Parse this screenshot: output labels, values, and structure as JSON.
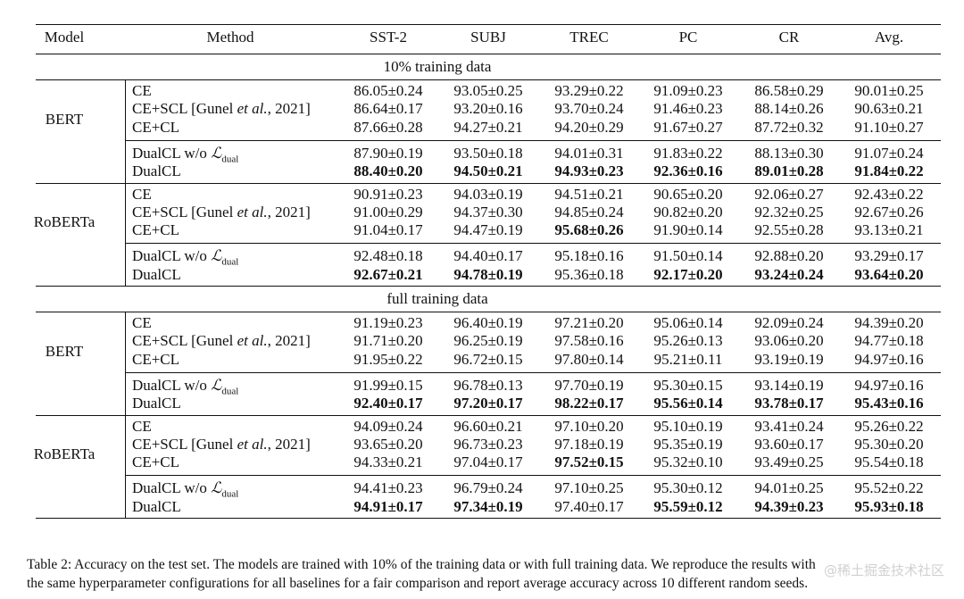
{
  "table": {
    "headers": [
      "Model",
      "Method",
      "SST-2",
      "SUBJ",
      "TREC",
      "PC",
      "CR",
      "Avg."
    ],
    "sections": [
      {
        "title": "10% training data",
        "groups": [
          {
            "model": "BERT",
            "rows": [
              {
                "method": "CE",
                "cells": [
                  [
                    "86.05±0.24",
                    false
                  ],
                  [
                    "93.05±0.25",
                    false
                  ],
                  [
                    "93.29±0.22",
                    false
                  ],
                  [
                    "91.09±0.23",
                    false
                  ],
                  [
                    "86.58±0.29",
                    false
                  ],
                  [
                    "90.01±0.25",
                    false
                  ]
                ]
              },
              {
                "method": "CE+SCL [Gunel et al., 2021]",
                "cells": [
                  [
                    "86.64±0.17",
                    false
                  ],
                  [
                    "93.20±0.16",
                    false
                  ],
                  [
                    "93.70±0.24",
                    false
                  ],
                  [
                    "91.46±0.23",
                    false
                  ],
                  [
                    "88.14±0.26",
                    false
                  ],
                  [
                    "90.63±0.21",
                    false
                  ]
                ]
              },
              {
                "method": "CE+CL",
                "cells": [
                  [
                    "87.66±0.28",
                    false
                  ],
                  [
                    "94.27±0.21",
                    false
                  ],
                  [
                    "94.20±0.29",
                    false
                  ],
                  [
                    "91.67±0.27",
                    false
                  ],
                  [
                    "87.72±0.32",
                    false
                  ],
                  [
                    "91.10±0.27",
                    false
                  ]
                ]
              },
              {
                "method": "DualCL w/o L_dual",
                "cells": [
                  [
                    "87.90±0.19",
                    false
                  ],
                  [
                    "93.50±0.18",
                    false
                  ],
                  [
                    "94.01±0.31",
                    false
                  ],
                  [
                    "91.83±0.22",
                    false
                  ],
                  [
                    "88.13±0.30",
                    false
                  ],
                  [
                    "91.07±0.24",
                    false
                  ]
                ]
              },
              {
                "method": "DualCL",
                "cells": [
                  [
                    "88.40±0.20",
                    true
                  ],
                  [
                    "94.50±0.21",
                    true
                  ],
                  [
                    "94.93±0.23",
                    true
                  ],
                  [
                    "92.36±0.16",
                    true
                  ],
                  [
                    "89.01±0.28",
                    true
                  ],
                  [
                    "91.84±0.22",
                    true
                  ]
                ]
              }
            ]
          },
          {
            "model": "RoBERTa",
            "rows": [
              {
                "method": "CE",
                "cells": [
                  [
                    "90.91±0.23",
                    false
                  ],
                  [
                    "94.03±0.19",
                    false
                  ],
                  [
                    "94.51±0.21",
                    false
                  ],
                  [
                    "90.65±0.20",
                    false
                  ],
                  [
                    "92.06±0.27",
                    false
                  ],
                  [
                    "92.43±0.22",
                    false
                  ]
                ]
              },
              {
                "method": "CE+SCL [Gunel et al., 2021]",
                "cells": [
                  [
                    "91.00±0.29",
                    false
                  ],
                  [
                    "94.37±0.30",
                    false
                  ],
                  [
                    "94.85±0.24",
                    false
                  ],
                  [
                    "90.82±0.20",
                    false
                  ],
                  [
                    "92.32±0.25",
                    false
                  ],
                  [
                    "92.67±0.26",
                    false
                  ]
                ]
              },
              {
                "method": "CE+CL",
                "cells": [
                  [
                    "91.04±0.17",
                    false
                  ],
                  [
                    "94.47±0.19",
                    false
                  ],
                  [
                    "95.68±0.26",
                    true
                  ],
                  [
                    "91.90±0.14",
                    false
                  ],
                  [
                    "92.55±0.28",
                    false
                  ],
                  [
                    "93.13±0.21",
                    false
                  ]
                ]
              },
              {
                "method": "DualCL w/o L_dual",
                "cells": [
                  [
                    "92.48±0.18",
                    false
                  ],
                  [
                    "94.40±0.17",
                    false
                  ],
                  [
                    "95.18±0.16",
                    false
                  ],
                  [
                    "91.50±0.14",
                    false
                  ],
                  [
                    "92.88±0.20",
                    false
                  ],
                  [
                    "93.29±0.17",
                    false
                  ]
                ]
              },
              {
                "method": "DualCL",
                "cells": [
                  [
                    "92.67±0.21",
                    true
                  ],
                  [
                    "94.78±0.19",
                    true
                  ],
                  [
                    "95.36±0.18",
                    false
                  ],
                  [
                    "92.17±0.20",
                    true
                  ],
                  [
                    "93.24±0.24",
                    true
                  ],
                  [
                    "93.64±0.20",
                    true
                  ]
                ]
              }
            ]
          }
        ]
      },
      {
        "title": "full training data",
        "groups": [
          {
            "model": "BERT",
            "rows": [
              {
                "method": "CE",
                "cells": [
                  [
                    "91.19±0.23",
                    false
                  ],
                  [
                    "96.40±0.19",
                    false
                  ],
                  [
                    "97.21±0.20",
                    false
                  ],
                  [
                    "95.06±0.14",
                    false
                  ],
                  [
                    "92.09±0.24",
                    false
                  ],
                  [
                    "94.39±0.20",
                    false
                  ]
                ]
              },
              {
                "method": "CE+SCL [Gunel et al., 2021]",
                "cells": [
                  [
                    "91.71±0.20",
                    false
                  ],
                  [
                    "96.25±0.19",
                    false
                  ],
                  [
                    "97.58±0.16",
                    false
                  ],
                  [
                    "95.26±0.13",
                    false
                  ],
                  [
                    "93.06±0.20",
                    false
                  ],
                  [
                    "94.77±0.18",
                    false
                  ]
                ]
              },
              {
                "method": "CE+CL",
                "cells": [
                  [
                    "91.95±0.22",
                    false
                  ],
                  [
                    "96.72±0.15",
                    false
                  ],
                  [
                    "97.80±0.14",
                    false
                  ],
                  [
                    "95.21±0.11",
                    false
                  ],
                  [
                    "93.19±0.19",
                    false
                  ],
                  [
                    "94.97±0.16",
                    false
                  ]
                ]
              },
              {
                "method": "DualCL w/o L_dual",
                "cells": [
                  [
                    "91.99±0.15",
                    false
                  ],
                  [
                    "96.78±0.13",
                    false
                  ],
                  [
                    "97.70±0.19",
                    false
                  ],
                  [
                    "95.30±0.15",
                    false
                  ],
                  [
                    "93.14±0.19",
                    false
                  ],
                  [
                    "94.97±0.16",
                    false
                  ]
                ]
              },
              {
                "method": "DualCL",
                "cells": [
                  [
                    "92.40±0.17",
                    true
                  ],
                  [
                    "97.20±0.17",
                    true
                  ],
                  [
                    "98.22±0.17",
                    true
                  ],
                  [
                    "95.56±0.14",
                    true
                  ],
                  [
                    "93.78±0.17",
                    true
                  ],
                  [
                    "95.43±0.16",
                    true
                  ]
                ]
              }
            ]
          },
          {
            "model": "RoBERTa",
            "rows": [
              {
                "method": "CE",
                "cells": [
                  [
                    "94.09±0.24",
                    false
                  ],
                  [
                    "96.60±0.21",
                    false
                  ],
                  [
                    "97.10±0.20",
                    false
                  ],
                  [
                    "95.10±0.19",
                    false
                  ],
                  [
                    "93.41±0.24",
                    false
                  ],
                  [
                    "95.26±0.22",
                    false
                  ]
                ]
              },
              {
                "method": "CE+SCL [Gunel et al., 2021]",
                "cells": [
                  [
                    "93.65±0.20",
                    false
                  ],
                  [
                    "96.73±0.23",
                    false
                  ],
                  [
                    "97.18±0.19",
                    false
                  ],
                  [
                    "95.35±0.19",
                    false
                  ],
                  [
                    "93.60±0.17",
                    false
                  ],
                  [
                    "95.30±0.20",
                    false
                  ]
                ]
              },
              {
                "method": "CE+CL",
                "cells": [
                  [
                    "94.33±0.21",
                    false
                  ],
                  [
                    "97.04±0.17",
                    false
                  ],
                  [
                    "97.52±0.15",
                    true
                  ],
                  [
                    "95.32±0.10",
                    false
                  ],
                  [
                    "93.49±0.25",
                    false
                  ],
                  [
                    "95.54±0.18",
                    false
                  ]
                ]
              },
              {
                "method": "DualCL w/o L_dual",
                "cells": [
                  [
                    "94.41±0.23",
                    false
                  ],
                  [
                    "96.79±0.24",
                    false
                  ],
                  [
                    "97.10±0.25",
                    false
                  ],
                  [
                    "95.30±0.12",
                    false
                  ],
                  [
                    "94.01±0.25",
                    false
                  ],
                  [
                    "95.52±0.22",
                    false
                  ]
                ]
              },
              {
                "method": "DualCL",
                "cells": [
                  [
                    "94.91±0.17",
                    true
                  ],
                  [
                    "97.34±0.19",
                    true
                  ],
                  [
                    "97.40±0.17",
                    false
                  ],
                  [
                    "95.59±0.12",
                    true
                  ],
                  [
                    "94.39±0.23",
                    true
                  ],
                  [
                    "95.93±0.18",
                    true
                  ]
                ]
              }
            ]
          }
        ]
      }
    ]
  },
  "caption": {
    "line1": "Table 2: Accuracy on the test set. The models are trained with 10% of the training data or with full training data. We reproduce the results with",
    "line2": "the same hyperparameter configurations for all baselines for a fair comparison and report average accuracy across 10 different random seeds."
  },
  "watermark": "@稀土掘金技术社区"
}
